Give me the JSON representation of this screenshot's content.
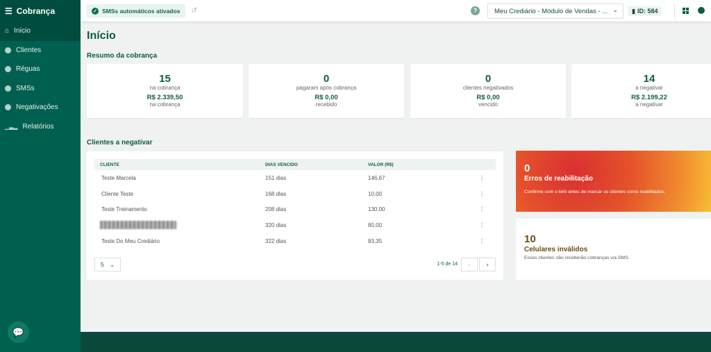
{
  "sidebar": {
    "title": "Cobrança",
    "items": [
      {
        "label": "Início",
        "icon": "home-icon"
      },
      {
        "label": "Clientes",
        "icon": "user-circle-icon"
      },
      {
        "label": "Réguas",
        "icon": "gear-icon"
      },
      {
        "label": "SMSs",
        "icon": "chat-icon"
      },
      {
        "label": "Negativações",
        "icon": "minus-circle-icon"
      },
      {
        "label": "Relatórios",
        "icon": "bar-chart-icon"
      }
    ]
  },
  "topbar": {
    "sms_status": "SMSs automáticos ativados",
    "store": "Meu Crediário - Módulo de Vendas - ...",
    "id": "ID: 584"
  },
  "page": {
    "title": "Início",
    "summary_title": "Resumo da cobrança",
    "table_title": "Clientes a negativar"
  },
  "stats": [
    {
      "count": "15",
      "count_label": "na cobrança",
      "value": "R$ 2.339,50",
      "value_label": "na cobrança"
    },
    {
      "count": "0",
      "count_label": "pagaram após cobrança",
      "value": "R$ 0,00",
      "value_label": "recebido"
    },
    {
      "count": "0",
      "count_label": "clientes negativados",
      "value": "R$ 0,00",
      "value_label": "vencido"
    },
    {
      "count": "14",
      "count_label": "a negativar",
      "value": "R$ 2.199,22",
      "value_label": "a negativar"
    }
  ],
  "table": {
    "headers": [
      "CLIENTE",
      "DIAS VENCIDO",
      "VALOR (R$)"
    ],
    "rows": [
      [
        "Teste Marcela",
        "151 dias",
        "146,67"
      ],
      [
        "Cliente Teste",
        "168 dias",
        "10,00"
      ],
      [
        "Teste Treinamento",
        "208 dias",
        "130,00"
      ],
      [
        "",
        "320 dias",
        "80,00"
      ],
      [
        "Teste Do Meu Crediário",
        "322 dias",
        "83,35"
      ]
    ],
    "per_page": "5",
    "range": "1-5 de 14"
  },
  "errors": {
    "count": "0",
    "title": "Erros de reabilitação",
    "desc": "Confirme com o birô antes de marcar os clientes como reabilitados."
  },
  "phones": {
    "count": "10",
    "title": "Celulares inválidos",
    "desc": "Esses clientes não receberão cobranças via SMS."
  },
  "colors": {
    "primary": "#00604f",
    "dark": "#004d3f"
  }
}
